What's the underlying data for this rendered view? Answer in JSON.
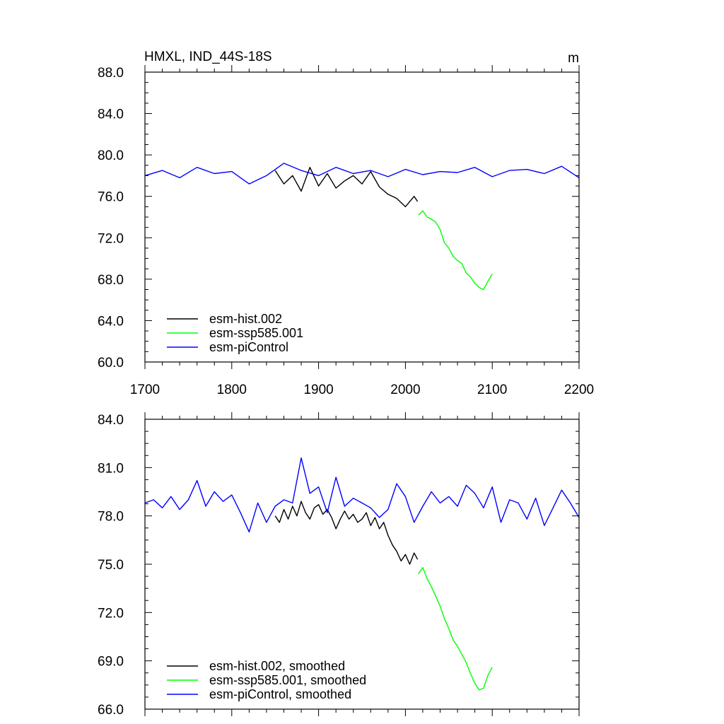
{
  "figure": {
    "background": "#ffffff"
  },
  "chart_data": [
    {
      "type": "line",
      "title": "HMXL, IND_44S-18S",
      "units": "m",
      "xlim": [
        1700,
        2200
      ],
      "ylim": [
        60,
        88
      ],
      "xticks": [
        1700,
        1800,
        1900,
        2000,
        2100,
        2200
      ],
      "xtick_labels": [
        "1700",
        "1800",
        "1900",
        "2000",
        "2100",
        "2200"
      ],
      "yticks": [
        60,
        64,
        68,
        72,
        76,
        80,
        84,
        88
      ],
      "ytick_labels": [
        "60.0",
        "64.0",
        "68.0",
        "72.0",
        "76.0",
        "80.0",
        "84.0",
        "88.0"
      ],
      "grid": false,
      "legend": {
        "position": "bottom-left"
      },
      "series": [
        {
          "name": "esm-hist.002",
          "color": "#000000",
          "x": [
            1850,
            1860,
            1870,
            1880,
            1890,
            1900,
            1910,
            1920,
            1930,
            1940,
            1950,
            1960,
            1970,
            1980,
            1990,
            2000,
            2010,
            2014
          ],
          "y": [
            78.5,
            77.2,
            78.0,
            76.5,
            78.8,
            77.0,
            78.2,
            76.8,
            77.5,
            78.0,
            77.2,
            78.4,
            76.9,
            76.2,
            75.8,
            75.0,
            76.0,
            75.5
          ]
        },
        {
          "name": "esm-ssp585.001",
          "color": "#00ff00",
          "x": [
            2015,
            2020,
            2025,
            2030,
            2035,
            2040,
            2045,
            2050,
            2055,
            2060,
            2065,
            2070,
            2075,
            2080,
            2085,
            2090,
            2095,
            2100
          ],
          "y": [
            74.2,
            74.6,
            74.0,
            73.8,
            73.5,
            72.8,
            71.5,
            71.0,
            70.2,
            69.8,
            69.5,
            68.6,
            68.2,
            67.6,
            67.2,
            67.0,
            67.8,
            68.5
          ]
        },
        {
          "name": "esm-piControl",
          "color": "#0000ff",
          "x": [
            1700,
            1720,
            1740,
            1760,
            1780,
            1800,
            1820,
            1840,
            1860,
            1880,
            1900,
            1920,
            1940,
            1960,
            1980,
            2000,
            2020,
            2040,
            2060,
            2080,
            2100,
            2120,
            2140,
            2160,
            2180,
            2200
          ],
          "y": [
            78.0,
            78.5,
            77.8,
            78.8,
            78.2,
            78.4,
            77.2,
            78.0,
            79.2,
            78.5,
            78.0,
            78.8,
            78.2,
            78.5,
            77.9,
            78.6,
            78.1,
            78.4,
            78.3,
            78.8,
            77.9,
            78.5,
            78.6,
            78.2,
            78.9,
            77.8
          ]
        }
      ]
    },
    {
      "type": "line",
      "title": "",
      "units": "",
      "xlim": [
        1700,
        2200
      ],
      "ylim": [
        66,
        84
      ],
      "xticks": [
        1700,
        1800,
        1900,
        2000,
        2100,
        2200
      ],
      "xtick_labels": [],
      "yticks": [
        66,
        69,
        72,
        75,
        78,
        81,
        84
      ],
      "ytick_labels": [
        "66.0",
        "69.0",
        "72.0",
        "75.0",
        "78.0",
        "81.0",
        "84.0"
      ],
      "grid": false,
      "legend": {
        "position": "bottom-left"
      },
      "series": [
        {
          "name": "esm-hist.002, smoothed",
          "color": "#000000",
          "x": [
            1850,
            1855,
            1860,
            1865,
            1870,
            1875,
            1880,
            1885,
            1890,
            1895,
            1900,
            1905,
            1910,
            1915,
            1920,
            1925,
            1930,
            1935,
            1940,
            1945,
            1950,
            1955,
            1960,
            1965,
            1970,
            1975,
            1980,
            1985,
            1990,
            1995,
            2000,
            2005,
            2010,
            2014
          ],
          "y": [
            78.0,
            77.6,
            78.4,
            77.8,
            78.6,
            78.0,
            78.9,
            78.2,
            77.8,
            78.5,
            78.7,
            78.1,
            78.4,
            77.9,
            77.2,
            77.8,
            78.3,
            77.8,
            78.1,
            77.6,
            77.8,
            78.2,
            77.4,
            77.9,
            77.2,
            77.6,
            76.8,
            76.2,
            75.8,
            75.2,
            75.6,
            75.0,
            75.7,
            75.3
          ]
        },
        {
          "name": "esm-ssp585.001, smoothed",
          "color": "#00ff00",
          "x": [
            2015,
            2020,
            2025,
            2030,
            2035,
            2040,
            2045,
            2050,
            2055,
            2060,
            2065,
            2070,
            2075,
            2080,
            2085,
            2090,
            2095,
            2100
          ],
          "y": [
            74.4,
            74.8,
            74.1,
            73.6,
            73.0,
            72.4,
            71.6,
            71.0,
            70.3,
            69.9,
            69.4,
            68.9,
            68.2,
            67.6,
            67.2,
            67.3,
            68.1,
            68.6
          ]
        },
        {
          "name": "esm-piControl, smoothed",
          "color": "#0000ff",
          "x": [
            1700,
            1710,
            1720,
            1730,
            1740,
            1750,
            1760,
            1770,
            1780,
            1790,
            1800,
            1810,
            1820,
            1830,
            1840,
            1850,
            1860,
            1870,
            1880,
            1890,
            1900,
            1910,
            1920,
            1930,
            1940,
            1950,
            1960,
            1970,
            1980,
            1990,
            2000,
            2010,
            2020,
            2030,
            2040,
            2050,
            2060,
            2070,
            2080,
            2090,
            2100,
            2110,
            2120,
            2130,
            2140,
            2150,
            2160,
            2170,
            2180,
            2190,
            2200
          ],
          "y": [
            78.8,
            79.0,
            78.5,
            79.2,
            78.4,
            79.0,
            80.2,
            78.6,
            79.5,
            78.9,
            79.3,
            78.2,
            77.0,
            78.8,
            77.6,
            78.6,
            79.0,
            78.8,
            81.6,
            79.4,
            79.8,
            78.2,
            80.4,
            78.6,
            79.1,
            78.8,
            78.5,
            77.9,
            78.4,
            80.0,
            79.2,
            77.6,
            78.6,
            79.5,
            78.8,
            79.2,
            78.6,
            79.9,
            79.4,
            78.5,
            79.8,
            77.6,
            79.0,
            78.8,
            77.8,
            79.1,
            77.4,
            78.5,
            79.6,
            78.8,
            77.9
          ]
        }
      ]
    }
  ]
}
